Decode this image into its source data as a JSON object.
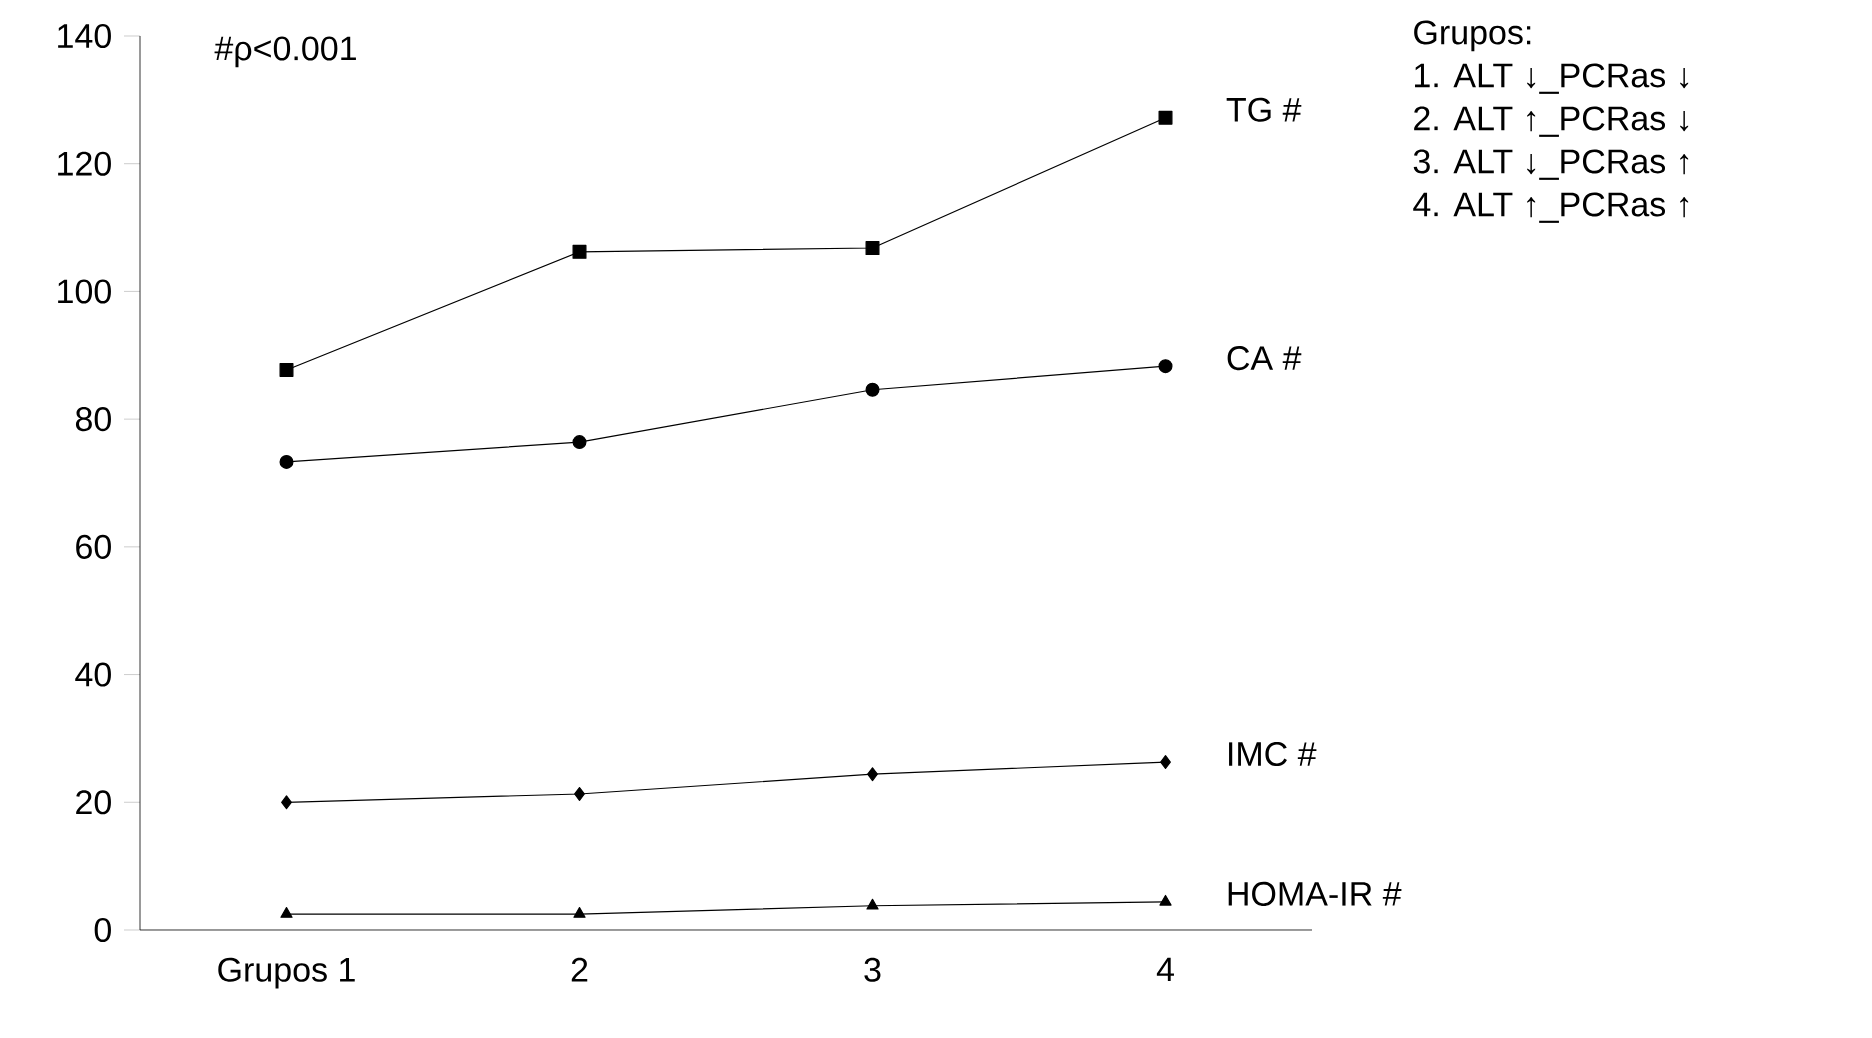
{
  "chart_data": {
    "type": "line",
    "categories": [
      "Grupos 1",
      "2",
      "3",
      "4"
    ],
    "ylim": [
      0,
      140
    ],
    "yticks": [
      0,
      20,
      40,
      60,
      80,
      100,
      120,
      140
    ],
    "grid": false,
    "legend": false,
    "series": [
      {
        "name": "TG #",
        "color": "#000000",
        "marker": "square",
        "values": [
          87.7,
          106.2,
          106.8,
          127.2
        ]
      },
      {
        "name": "CA #",
        "color": "#000000",
        "marker": "circle",
        "values": [
          73.3,
          76.4,
          84.6,
          88.3
        ]
      },
      {
        "name": "IMC  #",
        "color": "#000000",
        "marker": "diamond",
        "values": [
          20.0,
          21.3,
          24.4,
          26.3
        ]
      },
      {
        "name": "HOMA-IR #",
        "color": "#000000",
        "marker": "triangle",
        "values": [
          2.5,
          2.5,
          3.8,
          4.4
        ]
      }
    ],
    "annotations": [
      "#ρ<0.001",
      "Grupos:",
      "1. ALT ↓_PCRas ↓",
      "2. ALT ↑_PCRas ↓",
      "3. ALT ↓_PCRas ↑",
      "4. ALT ↑_PCRas ↑"
    ]
  }
}
